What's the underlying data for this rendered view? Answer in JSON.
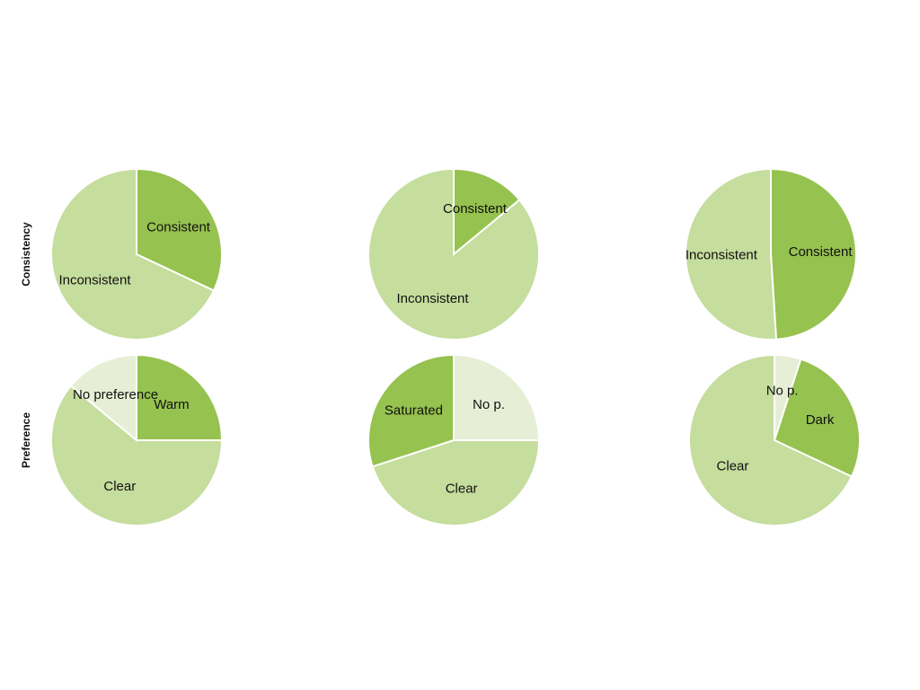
{
  "row_labels": [
    "Consistency",
    "Preference"
  ],
  "chart_data": [
    {
      "type": "pie",
      "categories": [
        "Consistent",
        "Inconsistent"
      ],
      "values": [
        32,
        68
      ],
      "colors": [
        "#96c24f",
        "#c5dd9d"
      ]
    },
    {
      "type": "pie",
      "categories": [
        "Consistent",
        "Inconsistent"
      ],
      "values": [
        14,
        86
      ],
      "colors": [
        "#96c24f",
        "#c5dd9d"
      ]
    },
    {
      "type": "pie",
      "categories": [
        "Consistent",
        "Inconsistent"
      ],
      "values": [
        49,
        51
      ],
      "colors": [
        "#96c24f",
        "#c5dd9d"
      ]
    },
    {
      "type": "pie",
      "categories": [
        "Warm",
        "Clear",
        "No preference"
      ],
      "values": [
        25,
        61,
        14
      ],
      "colors": [
        "#96c24f",
        "#c5dd9d",
        "#e6efd5"
      ]
    },
    {
      "type": "pie",
      "categories": [
        "No p.",
        "Clear",
        "Saturated"
      ],
      "values": [
        25,
        45,
        30
      ],
      "colors": [
        "#e6efd5",
        "#c5dd9d",
        "#96c24f"
      ]
    },
    {
      "type": "pie",
      "categories": [
        "No p.",
        "Dark",
        "Clear"
      ],
      "values": [
        5,
        27,
        68
      ],
      "colors": [
        "#e6efd5",
        "#96c24f",
        "#c5dd9d"
      ]
    }
  ]
}
